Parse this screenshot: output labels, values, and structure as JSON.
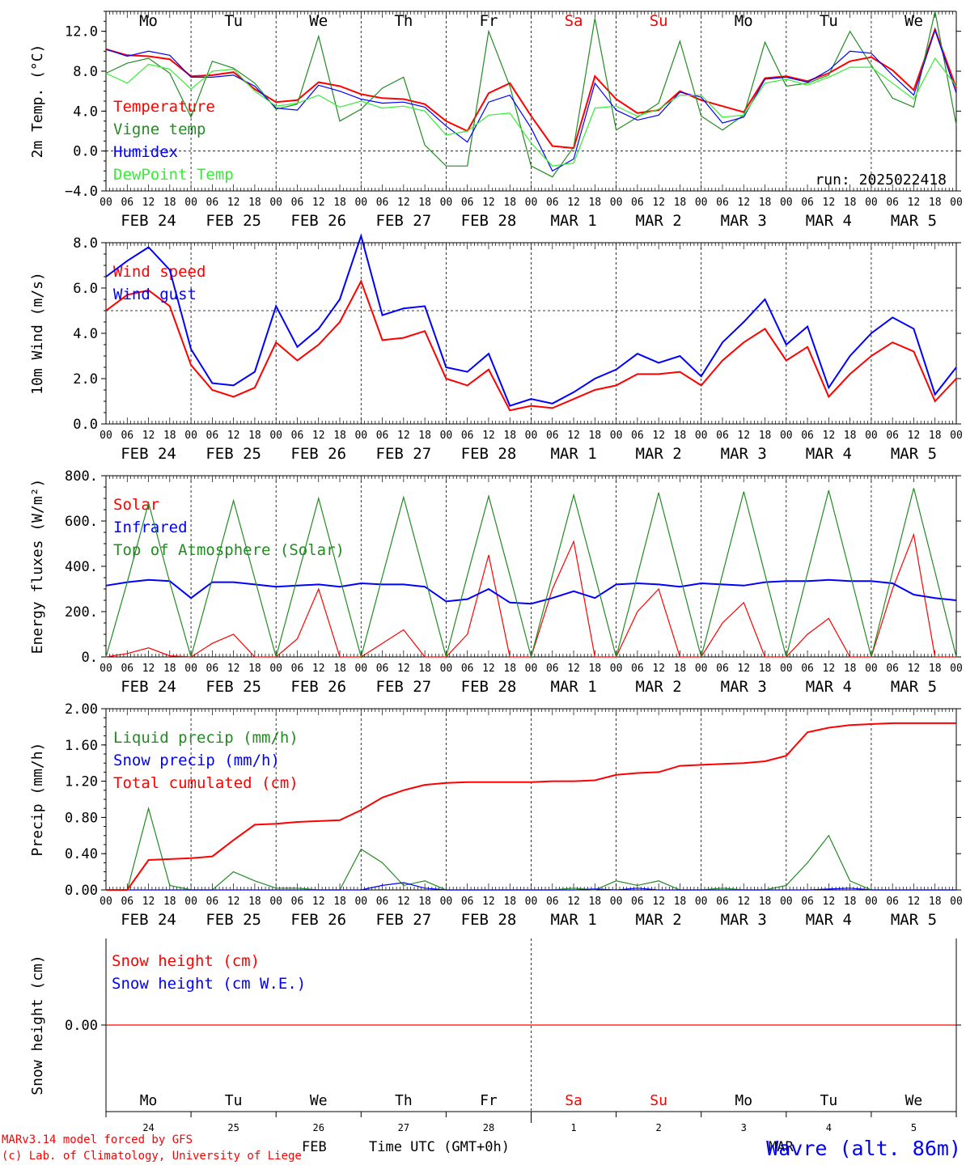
{
  "header": {
    "run": "run: 2025022418"
  },
  "footer": {
    "credit_line1": "MARv3.14 model forced by GFS",
    "credit_line2": "(c) Lab. of Climatology, University of Liege",
    "month": "FEB",
    "time_label": "Time UTC (GMT+0h)",
    "station": "Wavre (alt. 86m)",
    "month_overlay": "MAR"
  },
  "colors": {
    "red": "#ff0000",
    "green": "#228b22",
    "blue": "#0000ff",
    "light_green": "#33ee33",
    "weekend": "#ff0000"
  },
  "days": [
    {
      "abbr": "Mo",
      "date": "FEB 24",
      "num": "24",
      "weekend": false
    },
    {
      "abbr": "Tu",
      "date": "FEB 25",
      "num": "25",
      "weekend": false
    },
    {
      "abbr": "We",
      "date": "FEB 26",
      "num": "26",
      "weekend": false
    },
    {
      "abbr": "Th",
      "date": "FEB 27",
      "num": "27",
      "weekend": false
    },
    {
      "abbr": "Fr",
      "date": "FEB 28",
      "num": "28",
      "weekend": false
    },
    {
      "abbr": "Sa",
      "date": "MAR  1",
      "num": "1",
      "weekend": true
    },
    {
      "abbr": "Su",
      "date": "MAR  2",
      "num": "2",
      "weekend": true
    },
    {
      "abbr": "Mo",
      "date": "MAR  3",
      "num": "3",
      "weekend": false
    },
    {
      "abbr": "Tu",
      "date": "MAR  4",
      "num": "4",
      "weekend": false
    },
    {
      "abbr": "We",
      "date": "MAR  5",
      "num": "5",
      "weekend": false
    }
  ],
  "hour_ticks": [
    "00",
    "06",
    "12",
    "18"
  ],
  "chart_data": [
    {
      "type": "line",
      "ylabel": "2m Temp. (°C)",
      "ylim": [
        -4,
        14
      ],
      "yticks": [
        -4,
        0,
        4,
        8,
        12
      ],
      "ytick_labels": [
        "−4.0",
        "0.0",
        "4.0",
        "8.0",
        "12.0"
      ],
      "hline": null,
      "x_hours": [
        0,
        6,
        12,
        18,
        24,
        30,
        36,
        42,
        48,
        54,
        60,
        66,
        72,
        78,
        84,
        90,
        96,
        102,
        108,
        114,
        120,
        126,
        132,
        138,
        144,
        150,
        156,
        162,
        168,
        174,
        180,
        186,
        192,
        198,
        204,
        210,
        216,
        222,
        228,
        234,
        240
      ],
      "series": [
        {
          "name": "Temperature",
          "color": "#ff0000",
          "values": [
            10.2,
            9.6,
            9.5,
            9.2,
            7.5,
            7.6,
            7.9,
            6.2,
            4.9,
            5.1,
            6.9,
            6.5,
            5.7,
            5.3,
            5.2,
            4.7,
            3.0,
            2.0,
            5.8,
            6.8,
            3.5,
            0.5,
            0.3,
            7.5,
            5.2,
            3.8,
            4.1,
            6.0,
            5.1,
            4.5,
            3.9,
            7.3,
            7.5,
            7.0,
            7.8,
            9.0,
            9.4,
            8.1,
            6.1,
            12.2,
            6.3
          ]
        },
        {
          "name": "Vigne temp",
          "color": "#228b22",
          "values": [
            7.8,
            8.8,
            9.3,
            7.8,
            3.4,
            9.0,
            8.3,
            6.8,
            4.2,
            4.7,
            11.5,
            3.0,
            4.2,
            6.3,
            7.4,
            0.6,
            -1.5,
            -1.5,
            12.0,
            6.5,
            -1.5,
            -2.6,
            0.4,
            13.3,
            2.1,
            3.4,
            4.8,
            11.0,
            3.5,
            2.1,
            3.6,
            10.9,
            6.5,
            6.8,
            7.6,
            12.0,
            8.6,
            5.3,
            4.4,
            14.0,
            2.6
          ]
        },
        {
          "name": "Humidex",
          "color": "#0000ff",
          "values": [
            10.2,
            9.5,
            10.0,
            9.6,
            7.4,
            7.4,
            7.6,
            6.5,
            4.3,
            4.1,
            6.6,
            6.0,
            5.2,
            4.8,
            4.9,
            4.4,
            2.5,
            0.9,
            4.9,
            5.6,
            2.3,
            -2.0,
            -0.8,
            6.8,
            4.1,
            3.1,
            3.6,
            5.9,
            5.4,
            2.8,
            3.4,
            7.2,
            7.4,
            6.9,
            8.1,
            10.0,
            9.8,
            7.6,
            5.6,
            12.1,
            5.8
          ]
        },
        {
          "name": "DewPoint Temp",
          "color": "#33ee33",
          "values": [
            7.8,
            6.8,
            8.7,
            8.2,
            6.2,
            8.0,
            8.2,
            6.0,
            4.5,
            4.8,
            5.6,
            4.4,
            5.0,
            4.3,
            4.5,
            4.0,
            1.6,
            2.0,
            3.6,
            3.8,
            0.8,
            -1.5,
            -1.2,
            4.3,
            4.5,
            3.5,
            4.2,
            5.6,
            5.6,
            3.4,
            3.6,
            6.8,
            7.2,
            6.6,
            7.4,
            8.4,
            8.4,
            6.8,
            5.2,
            9.3,
            6.5
          ]
        }
      ]
    },
    {
      "type": "line",
      "ylabel": "10m Wind (m/s)",
      "ylim": [
        0,
        8
      ],
      "yticks": [
        0,
        2,
        4,
        6,
        8
      ],
      "ytick_labels": [
        "0.0",
        "2.0",
        "4.0",
        "6.0",
        "8.0"
      ],
      "hline": 5,
      "x_hours": [
        0,
        6,
        12,
        18,
        24,
        30,
        36,
        42,
        48,
        54,
        60,
        66,
        72,
        78,
        84,
        90,
        96,
        102,
        108,
        114,
        120,
        126,
        132,
        138,
        144,
        150,
        156,
        162,
        168,
        174,
        180,
        186,
        192,
        198,
        204,
        210,
        216,
        222,
        228,
        234,
        240
      ],
      "series": [
        {
          "name": "Wind speed",
          "color": "#ff0000",
          "values": [
            5.0,
            5.7,
            5.9,
            5.2,
            2.6,
            1.5,
            1.2,
            1.6,
            3.6,
            2.8,
            3.5,
            4.5,
            6.3,
            3.7,
            3.8,
            4.1,
            2.0,
            1.7,
            2.4,
            0.6,
            0.8,
            0.7,
            1.1,
            1.5,
            1.7,
            2.2,
            2.2,
            2.3,
            1.7,
            2.8,
            3.6,
            4.2,
            2.8,
            3.4,
            1.2,
            2.2,
            3.0,
            3.6,
            3.2,
            1.0,
            2.0
          ]
        },
        {
          "name": "Wind gust",
          "color": "#0000ff",
          "values": [
            6.5,
            7.2,
            7.8,
            6.8,
            3.3,
            1.8,
            1.7,
            2.3,
            5.2,
            3.4,
            4.2,
            5.5,
            8.3,
            4.8,
            5.1,
            5.2,
            2.5,
            2.3,
            3.1,
            0.8,
            1.1,
            0.9,
            1.4,
            2.0,
            2.4,
            3.1,
            2.7,
            3.0,
            2.1,
            3.6,
            4.5,
            5.5,
            3.5,
            4.3,
            1.6,
            3.0,
            4.0,
            4.7,
            4.2,
            1.3,
            2.5
          ]
        }
      ]
    },
    {
      "type": "line",
      "ylabel": "Energy fluxes (W/m²)",
      "ylim": [
        0,
        800
      ],
      "yticks": [
        0,
        200,
        400,
        600,
        800
      ],
      "ytick_labels": [
        "0.",
        "200.",
        "400.",
        "600.",
        "800."
      ],
      "hline": null,
      "x_hours": [
        0,
        6,
        12,
        18,
        24,
        30,
        36,
        42,
        48,
        54,
        60,
        66,
        72,
        78,
        84,
        90,
        96,
        102,
        108,
        114,
        120,
        126,
        132,
        138,
        144,
        150,
        156,
        162,
        168,
        174,
        180,
        186,
        192,
        198,
        204,
        210,
        216,
        222,
        228,
        234,
        240
      ],
      "series": [
        {
          "name": "Solar",
          "color": "#ff0000",
          "values": [
            0,
            15,
            40,
            5,
            0,
            60,
            100,
            0,
            0,
            80,
            300,
            0,
            0,
            60,
            120,
            0,
            0,
            100,
            450,
            0,
            0,
            300,
            510,
            0,
            0,
            200,
            300,
            0,
            0,
            150,
            240,
            0,
            0,
            100,
            170,
            0,
            0,
            300,
            540,
            0,
            0
          ]
        },
        {
          "name": "Infrared",
          "color": "#0000ff",
          "values": [
            315,
            330,
            340,
            335,
            260,
            330,
            330,
            320,
            310,
            315,
            320,
            310,
            325,
            320,
            320,
            310,
            245,
            255,
            300,
            240,
            235,
            260,
            290,
            260,
            320,
            325,
            320,
            310,
            325,
            320,
            315,
            330,
            335,
            335,
            340,
            335,
            335,
            325,
            275,
            260,
            250
          ]
        },
        {
          "name": "Top of Atmosphere (Solar)",
          "color": "#228b22",
          "values": [
            0,
            330,
            680,
            330,
            0,
            345,
            690,
            345,
            0,
            350,
            700,
            350,
            0,
            355,
            705,
            355,
            0,
            360,
            710,
            360,
            0,
            360,
            715,
            360,
            0,
            360,
            725,
            360,
            0,
            365,
            730,
            365,
            0,
            370,
            735,
            370,
            0,
            375,
            745,
            375,
            0
          ]
        }
      ]
    },
    {
      "type": "line",
      "ylabel": "Precip (mm/h)",
      "ylim": [
        0,
        2
      ],
      "yticks": [
        0,
        0.4,
        0.8,
        1.2,
        1.6,
        2.0
      ],
      "ytick_labels": [
        "0.00",
        "0.40",
        "0.80",
        "1.20",
        "1.60",
        "2.00"
      ],
      "hline": null,
      "x_hours": [
        0,
        6,
        12,
        18,
        24,
        30,
        36,
        42,
        48,
        54,
        60,
        66,
        72,
        78,
        84,
        90,
        96,
        102,
        108,
        114,
        120,
        126,
        132,
        138,
        144,
        150,
        156,
        162,
        168,
        174,
        180,
        186,
        192,
        198,
        204,
        210,
        216,
        222,
        228,
        234,
        240
      ],
      "series": [
        {
          "name": "Liquid precip (mm/h)",
          "color": "#228b22",
          "values": [
            0,
            0,
            0.9,
            0.05,
            0,
            0,
            0.2,
            0.1,
            0.02,
            0.02,
            0,
            0,
            0.45,
            0.3,
            0.05,
            0.1,
            0,
            0,
            0,
            0,
            0,
            0,
            0.02,
            0,
            0.1,
            0.05,
            0.1,
            0,
            0,
            0.02,
            0,
            0,
            0.05,
            0.3,
            0.6,
            0.1,
            0,
            0,
            0,
            0,
            0
          ]
        },
        {
          "name": "Snow precip (mm/h)",
          "color": "#0000ff",
          "values": [
            0,
            0,
            0,
            0,
            0,
            0,
            0,
            0,
            0,
            0,
            0,
            0,
            0,
            0.05,
            0.08,
            0.02,
            0,
            0,
            0,
            0,
            0,
            0,
            0,
            0.01,
            0,
            0.02,
            0,
            0,
            0,
            0,
            0,
            0,
            0,
            0,
            0.01,
            0.02,
            0,
            0,
            0,
            0,
            0
          ]
        },
        {
          "name": "Total cumulated (cm)",
          "color": "#ff0000",
          "values": [
            0,
            0,
            0.33,
            0.34,
            0.35,
            0.37,
            0.55,
            0.72,
            0.73,
            0.75,
            0.76,
            0.77,
            0.88,
            1.02,
            1.1,
            1.16,
            1.18,
            1.19,
            1.19,
            1.19,
            1.19,
            1.2,
            1.2,
            1.21,
            1.27,
            1.29,
            1.3,
            1.37,
            1.38,
            1.39,
            1.4,
            1.42,
            1.48,
            1.74,
            1.79,
            1.82,
            1.83,
            1.84,
            1.84,
            1.84,
            1.84
          ]
        }
      ]
    },
    {
      "type": "line",
      "ylabel": "Snow height (cm)",
      "ylim": [
        -1,
        1
      ],
      "yticks": [
        0
      ],
      "ytick_labels": [
        "0.00"
      ],
      "hline": null,
      "x_hours": [
        0,
        240
      ],
      "series": [
        {
          "name": "Snow height (cm)",
          "color": "#ff0000",
          "values": [
            0,
            0
          ]
        },
        {
          "name": "Snow height (cm W.E.)",
          "color": "#0000ff",
          "values": [
            0,
            0
          ]
        }
      ]
    }
  ]
}
